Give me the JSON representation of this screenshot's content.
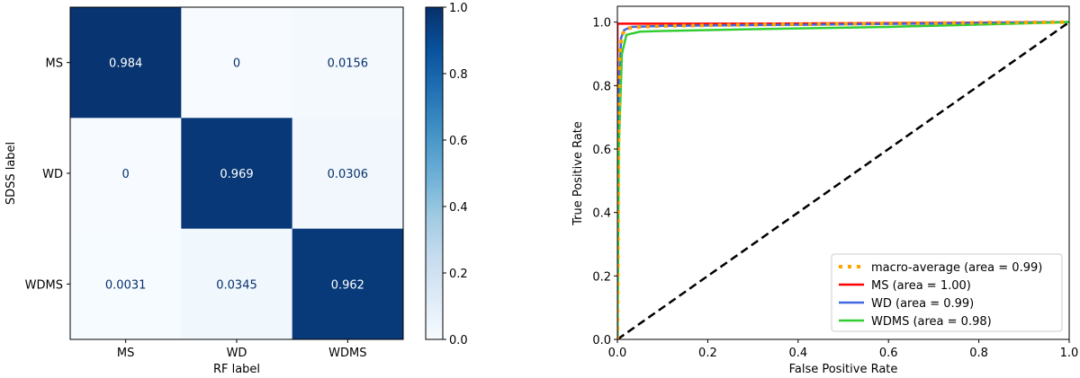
{
  "chart_data": [
    {
      "type": "heatmap",
      "xlabel": "RF label",
      "ylabel": "SDSS label",
      "x_categories": [
        "MS",
        "WD",
        "WDMS"
      ],
      "y_categories": [
        "MS",
        "WD",
        "WDMS"
      ],
      "values": [
        [
          0.984,
          0,
          0.0156
        ],
        [
          0,
          0.969,
          0.0306
        ],
        [
          0.0031,
          0.0345,
          0.962
        ]
      ],
      "cell_labels": [
        [
          "0.984",
          "0",
          "0.0156"
        ],
        [
          "0",
          "0.969",
          "0.0306"
        ],
        [
          "0.0031",
          "0.0345",
          "0.962"
        ]
      ],
      "colormap": "Blues",
      "colorbar": {
        "range": [
          0,
          1
        ],
        "ticks": [
          0.0,
          0.2,
          0.4,
          0.6,
          0.8,
          1.0
        ],
        "tick_labels": [
          "0.0",
          "0.2",
          "0.4",
          "0.6",
          "0.8",
          "1.0"
        ]
      }
    },
    {
      "type": "line",
      "xlabel": "False Positive Rate",
      "ylabel": "True Positive Rate",
      "xlim": [
        0,
        1
      ],
      "ylim": [
        0,
        1.05
      ],
      "xticks": [
        0.0,
        0.2,
        0.4,
        0.6,
        0.8,
        1.0
      ],
      "xtick_labels": [
        "0.0",
        "0.2",
        "0.4",
        "0.6",
        "0.8",
        "1.0"
      ],
      "yticks": [
        0.0,
        0.2,
        0.4,
        0.6,
        0.8,
        1.0
      ],
      "ytick_labels": [
        "0.0",
        "0.2",
        "0.4",
        "0.6",
        "0.8",
        "1.0"
      ],
      "legend_position": "lower-right",
      "grid": false,
      "series": [
        {
          "name": "macro-average (area = 0.99)",
          "color": "#ffa500",
          "style": "dotted",
          "x": [
            0,
            0.002,
            0.005,
            0.01,
            0.02,
            0.05,
            0.1,
            0.3,
            0.6,
            1.0
          ],
          "y": [
            0,
            0.55,
            0.9,
            0.96,
            0.98,
            0.985,
            0.988,
            0.992,
            0.996,
            1.0
          ]
        },
        {
          "name": "MS (area = 1.00)",
          "color": "#ff0000",
          "style": "solid",
          "x": [
            0,
            0.0,
            0.001,
            0.3,
            0.6,
            1.0
          ],
          "y": [
            0,
            0.99,
            0.995,
            0.995,
            0.997,
            1.0
          ]
        },
        {
          "name": "WD (area = 0.99)",
          "color": "#4169e1",
          "style": "solid",
          "x": [
            0,
            0.003,
            0.008,
            0.015,
            0.03,
            0.1,
            0.5,
            1.0
          ],
          "y": [
            0,
            0.75,
            0.95,
            0.975,
            0.985,
            0.988,
            0.993,
            1.0
          ]
        },
        {
          "name": "WDMS (area = 0.98)",
          "color": "#32cd32",
          "style": "solid",
          "x": [
            0,
            0.003,
            0.01,
            0.02,
            0.05,
            0.1,
            0.3,
            0.6,
            1.0
          ],
          "y": [
            0,
            0.6,
            0.9,
            0.96,
            0.97,
            0.972,
            0.978,
            0.985,
            1.0
          ]
        },
        {
          "name": "",
          "color": "#000000",
          "style": "dashed",
          "x": [
            0,
            1
          ],
          "y": [
            0,
            1
          ]
        }
      ]
    }
  ]
}
